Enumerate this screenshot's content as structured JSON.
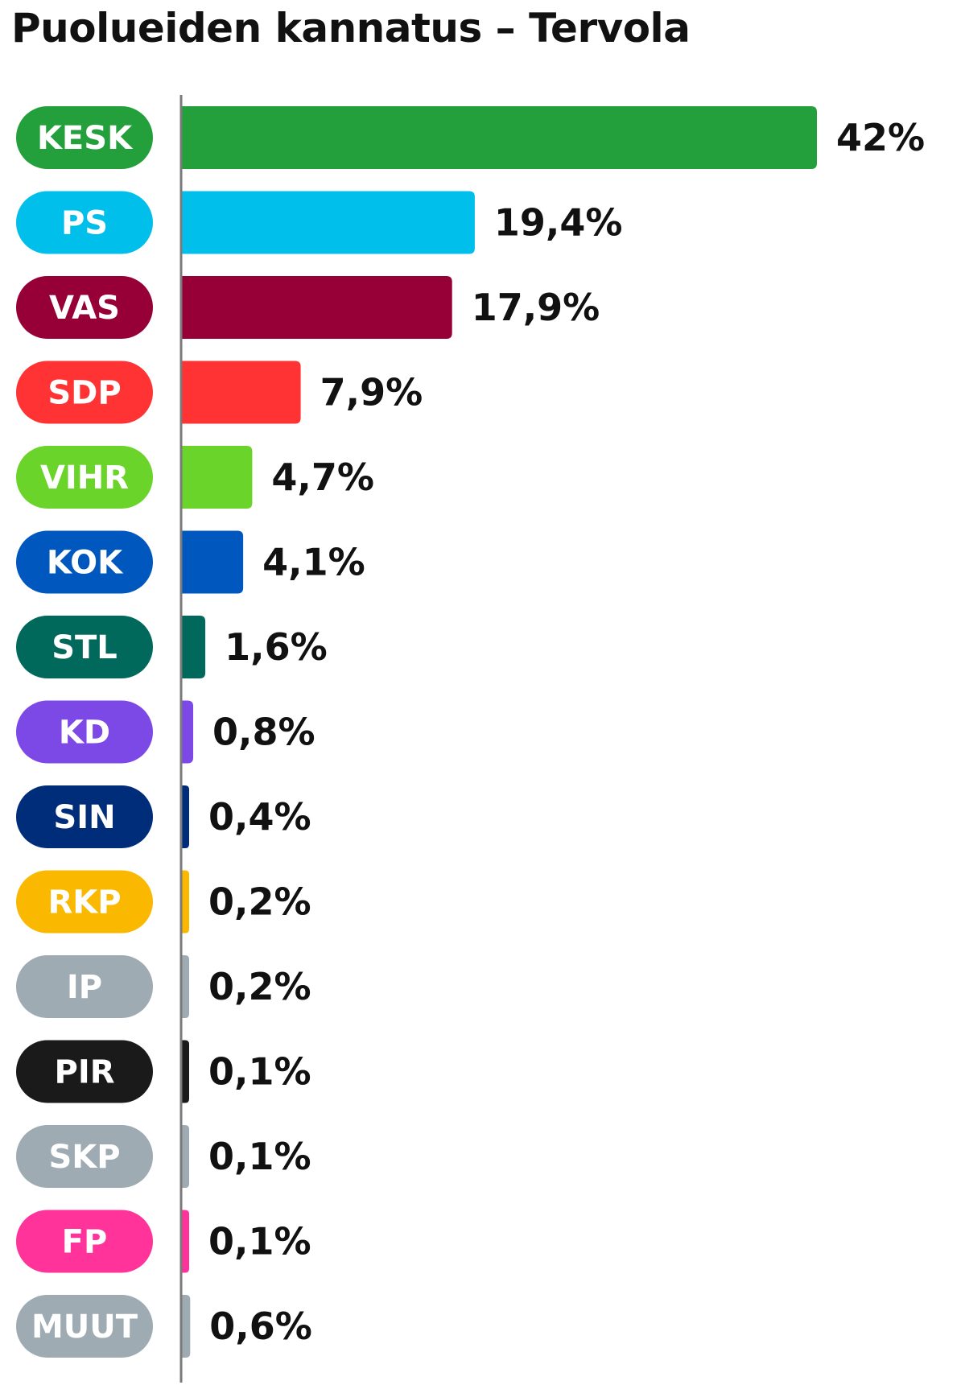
{
  "title": "Puolueiden kannatus – Tervola",
  "chart_data": {
    "type": "bar",
    "orientation": "horizontal",
    "title": "Puolueiden kannatus – Tervola",
    "xlabel": "",
    "ylabel": "",
    "grid": false,
    "value_suffix": "%",
    "decimal_separator": ",",
    "xlim": [
      0,
      42
    ],
    "categories": [
      "KESK",
      "PS",
      "VAS",
      "SDP",
      "VIHR",
      "KOK",
      "STL",
      "KD",
      "SIN",
      "RKP",
      "IP",
      "PIR",
      "SKP",
      "FP",
      "MUUT"
    ],
    "values": [
      42,
      19.4,
      17.9,
      7.9,
      4.7,
      4.1,
      1.6,
      0.8,
      0.4,
      0.2,
      0.2,
      0.1,
      0.1,
      0.1,
      0.6
    ],
    "labels": [
      "42%",
      "19,4%",
      "17,9%",
      "7,9%",
      "4,7%",
      "4,1%",
      "1,6%",
      "0,8%",
      "0,4%",
      "0,2%",
      "0,2%",
      "0,1%",
      "0,1%",
      "0,1%",
      "0,6%"
    ],
    "colors": [
      "#23a03c",
      "#00c0eb",
      "#960036",
      "#ff3333",
      "#6bd42b",
      "#0058bf",
      "#00695c",
      "#7d49e6",
      "#002d7a",
      "#fbb800",
      "#9eabb3",
      "#1a1a1a",
      "#9eabb3",
      "#ff3399",
      "#9eabb3"
    ]
  }
}
